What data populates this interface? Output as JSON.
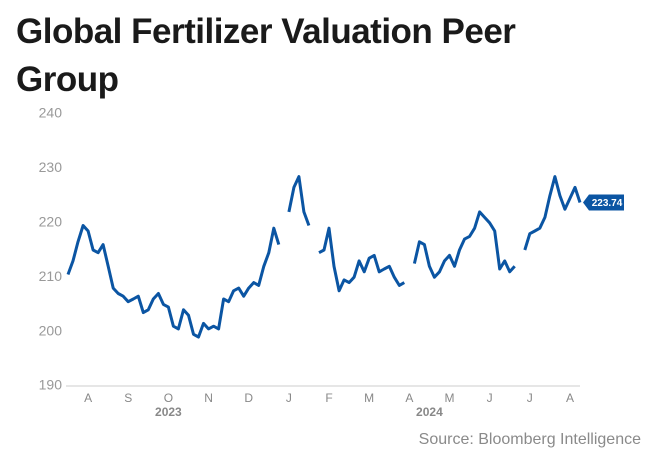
{
  "chart_data": {
    "type": "line",
    "title": "Global Fertilizer Valuation Peer Group",
    "source": "Source: Bloomberg Intelligence",
    "categories": [
      null,
      null,
      null,
      null,
      "A",
      null,
      null,
      null,
      null,
      null,
      null,
      null,
      "S",
      null,
      null,
      null,
      null,
      null,
      null,
      null,
      "O",
      null,
      null,
      null,
      null,
      null,
      null,
      null,
      "N",
      null,
      null,
      null,
      null,
      null,
      null,
      null,
      "D",
      null,
      null,
      null,
      null,
      null,
      null,
      null,
      "J",
      null,
      null,
      null,
      null,
      null,
      null,
      null,
      "F",
      null,
      null,
      null,
      null,
      null,
      null,
      null,
      "M",
      null,
      null,
      null,
      null,
      null,
      null,
      null,
      "A",
      null,
      null,
      null,
      null,
      null,
      null,
      null,
      "M",
      null,
      null,
      null,
      null,
      null,
      null,
      null,
      "J",
      null,
      null,
      null,
      null,
      null,
      null,
      null,
      "J",
      null,
      null,
      null,
      null,
      null,
      null,
      null,
      "A",
      null,
      null
    ],
    "years": [
      null,
      null,
      null,
      null,
      null,
      null,
      null,
      null,
      null,
      null,
      null,
      null,
      null,
      null,
      null,
      null,
      null,
      null,
      null,
      null,
      "2023",
      null,
      null,
      null,
      null,
      null,
      null,
      null,
      null,
      null,
      null,
      null,
      null,
      null,
      null,
      null,
      null,
      null,
      null,
      null,
      null,
      null,
      null,
      null,
      null,
      null,
      null,
      null,
      null,
      null,
      null,
      null,
      null,
      null,
      null,
      null,
      null,
      null,
      null,
      null,
      null,
      null,
      null,
      null,
      null,
      null,
      null,
      null,
      null,
      null,
      null,
      null,
      "2024",
      null,
      null,
      null,
      null,
      null,
      null,
      null,
      null,
      null,
      null,
      null,
      null,
      null,
      null,
      null,
      null,
      null,
      null,
      null,
      null,
      null,
      null,
      null,
      null,
      null,
      null,
      null,
      null,
      null,
      null
    ],
    "series": [
      {
        "name": "Global Fertilizer Valuation Peer Group",
        "color": "#0b55a3",
        "values": [
          210.5,
          213,
          216.5,
          219.5,
          218.5,
          215,
          214.5,
          216,
          212,
          208,
          207,
          206.5,
          205.5,
          206,
          206.5,
          203.5,
          204,
          206,
          207,
          205,
          204.5,
          201,
          200.5,
          204,
          203,
          199.5,
          199,
          201.5,
          200.5,
          201,
          200.5,
          206,
          205.5,
          207.5,
          208,
          206.5,
          208,
          209,
          208.5,
          212,
          214.5,
          219,
          216,
          null,
          222,
          226.5,
          228.5,
          222,
          219.5,
          null,
          214.5,
          215,
          219,
          212,
          207.5,
          209.5,
          209,
          210,
          213,
          211,
          213.5,
          214,
          211,
          211.5,
          212,
          210,
          208.5,
          209,
          null,
          212.5,
          216.5,
          216,
          212,
          210,
          211,
          213,
          214,
          212,
          215,
          217,
          217.5,
          219,
          222,
          221,
          220,
          218.5,
          211.5,
          213,
          211,
          212,
          null,
          215,
          218,
          218.5,
          219,
          221,
          225,
          228.5,
          225,
          222.5,
          224.5,
          226.5,
          223.74
        ]
      }
    ],
    "ylim": [
      190,
      240
    ],
    "yticks": [
      190,
      200,
      210,
      220,
      230,
      240
    ],
    "grid": false
  }
}
